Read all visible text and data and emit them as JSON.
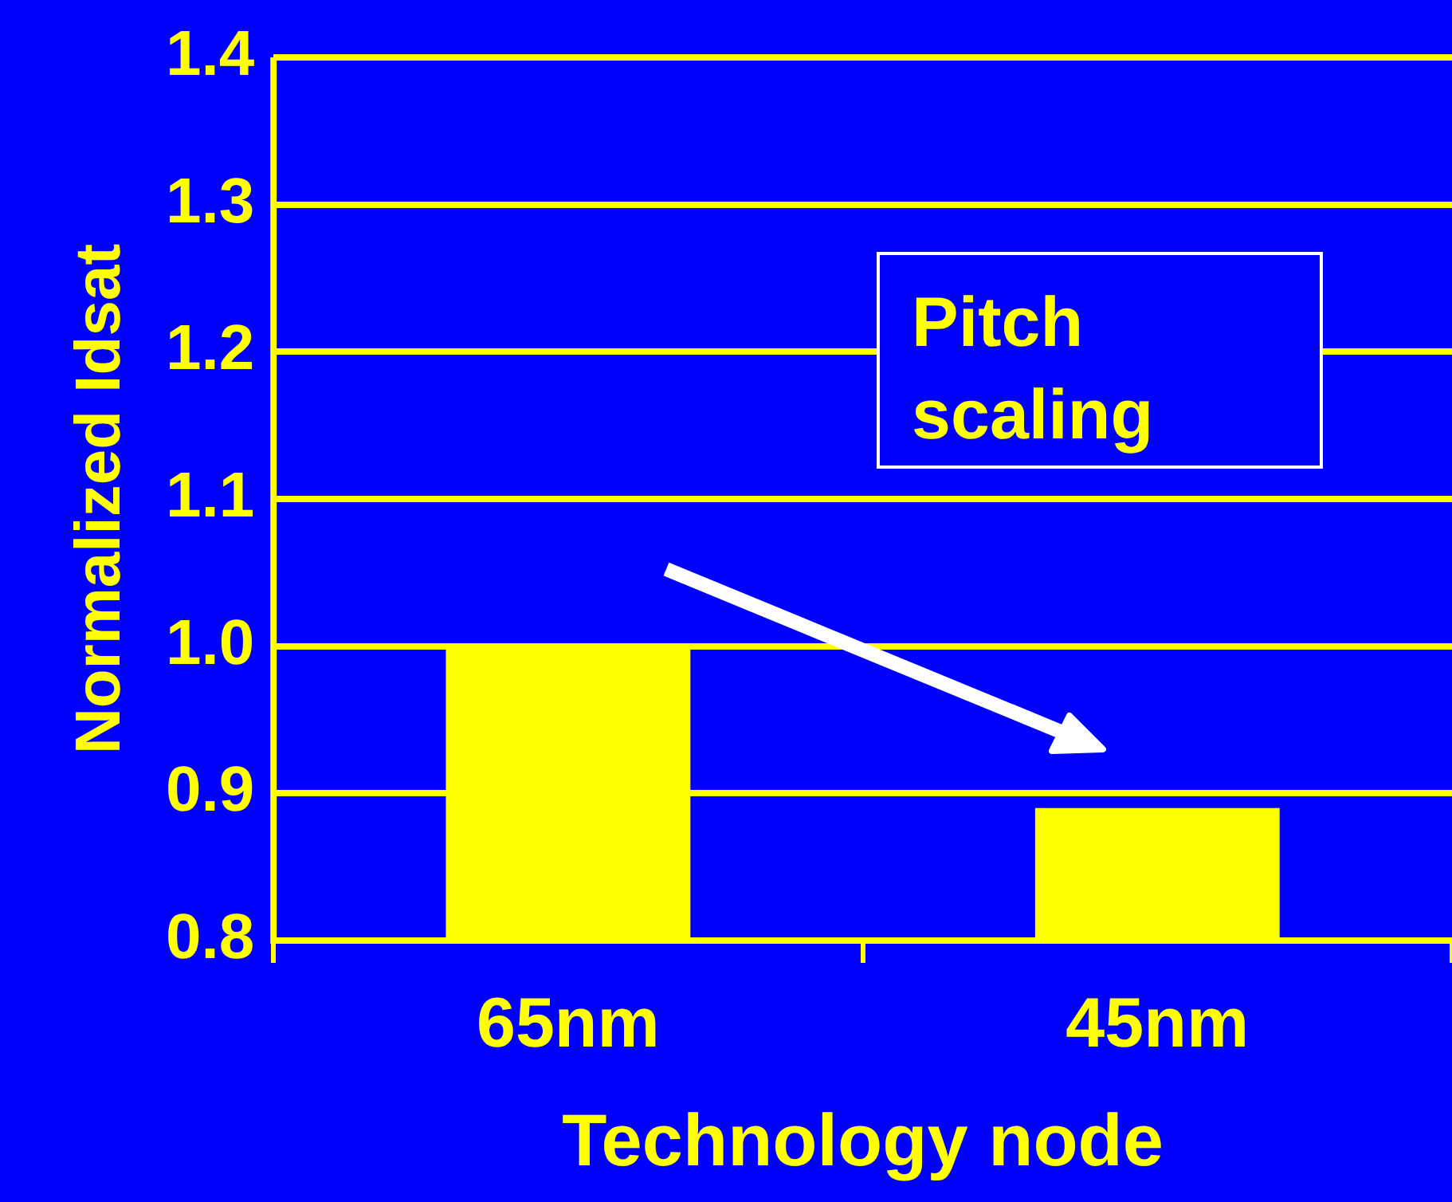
{
  "chart_data": {
    "type": "bar",
    "xlabel": "Technology node",
    "ylabel": "Normalized Idsat",
    "categories": [
      "65nm",
      "45nm"
    ],
    "values": [
      1.0,
      0.89
    ],
    "color": "#ffff00",
    "ylim": [
      0.8,
      1.4
    ],
    "yticks": [
      {
        "value": 0.8,
        "label": "0.8"
      },
      {
        "value": 0.9,
        "label": "0.9"
      },
      {
        "value": 1.0,
        "label": "1.0"
      },
      {
        "value": 1.1,
        "label": "1.1"
      },
      {
        "value": 1.2,
        "label": "1.2"
      },
      {
        "value": 1.3,
        "label": "1.3"
      },
      {
        "value": 1.4,
        "label": "1.4"
      }
    ],
    "grid": "y",
    "legend": false,
    "annotations": [
      "Pitch\nscaling"
    ]
  }
}
